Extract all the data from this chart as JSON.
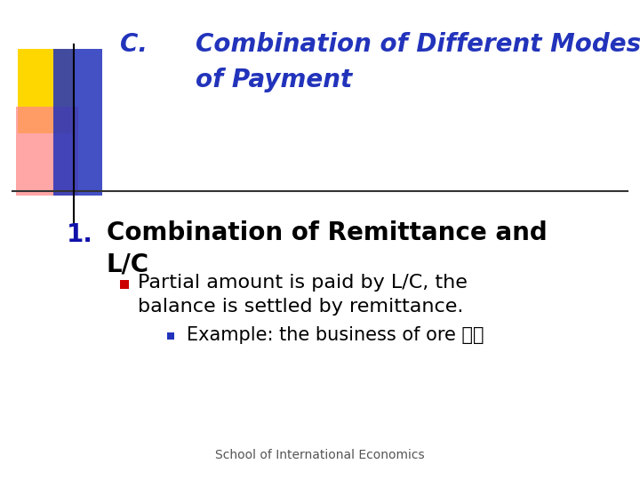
{
  "title_c": "C.",
  "title_line1": "Combination of Different Modes",
  "title_line2": "of Payment",
  "title_color": "#2233BB",
  "title_fontsize": 20,
  "heading1_label": "1.",
  "heading1_line1": "Combination of Remittance and",
  "heading1_line2": "L/C",
  "heading1_color": "#000000",
  "heading1_label_color": "#1111AA",
  "heading1_fontsize": 20,
  "bullet1_line1": "Partial amount is paid by L/C, the",
  "bullet1_line2": "balance is settled by remittance.",
  "bullet1_color": "#000000",
  "bullet1_fontsize": 16,
  "bullet1_marker_color": "#CC0000",
  "bullet2_text": "Example: the business of ore 矿沙",
  "bullet2_color": "#000000",
  "bullet2_fontsize": 15,
  "bullet2_marker_color": "#2233BB",
  "footer": "School of International Economics",
  "footer_fontsize": 10,
  "footer_color": "#555555",
  "bg_color": "#FFFFFF",
  "separator_color": "#333333",
  "deco_yellow": "#FFD700",
  "deco_pink": "#FF8888",
  "deco_blue": "#2233BB"
}
